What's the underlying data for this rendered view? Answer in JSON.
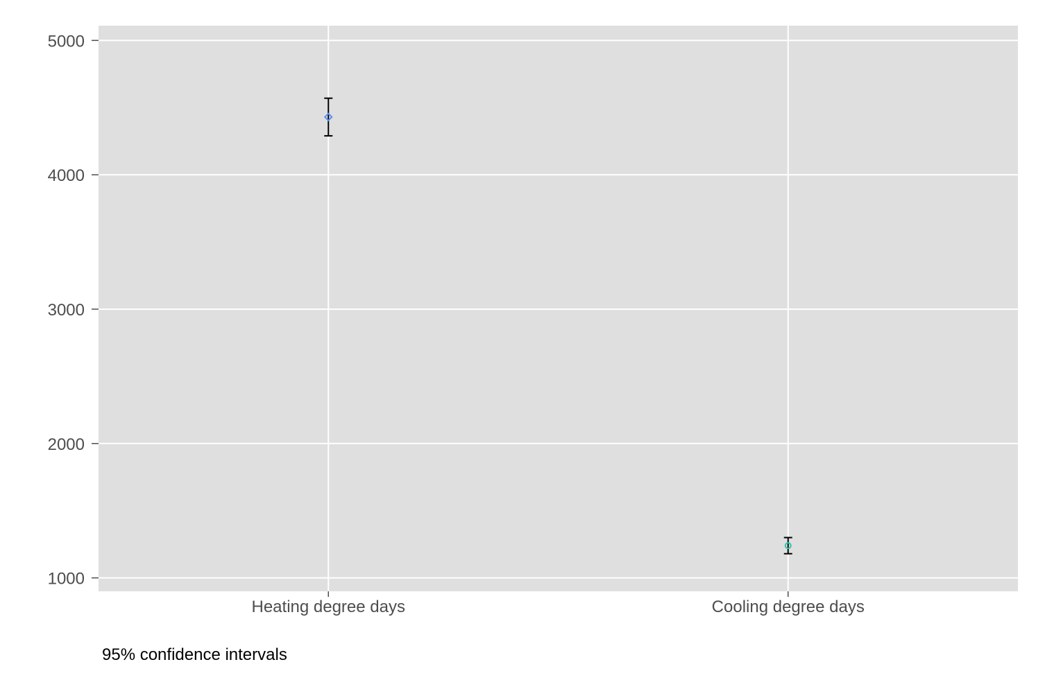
{
  "chart_data": {
    "type": "scatter",
    "title": "",
    "xlabel": "",
    "ylabel": "",
    "categories": [
      "Heating degree days",
      "Cooling degree days"
    ],
    "points": [
      {
        "category": "Heating degree days",
        "mean": 4430,
        "ci_low": 4290,
        "ci_high": 4570,
        "marker": "diamond",
        "color": "#5b8ff0"
      },
      {
        "category": "Cooling degree days",
        "mean": 1240,
        "ci_low": 1180,
        "ci_high": 1300,
        "marker": "circle",
        "color": "#2ec4a8"
      }
    ],
    "ylim": [
      900,
      5110
    ],
    "yticks": [
      1000,
      2000,
      3000,
      4000,
      5000
    ],
    "ytick_labels": [
      "1000",
      "2000",
      "3000",
      "4000",
      "5000"
    ],
    "grid": true,
    "legend": "none",
    "colors": {
      "panel_background": "#dfdfdf",
      "grid_line": "#ffffff",
      "error_bar": "#000000",
      "tick_label": "#4d4d4d"
    }
  },
  "caption": "95% confidence intervals"
}
